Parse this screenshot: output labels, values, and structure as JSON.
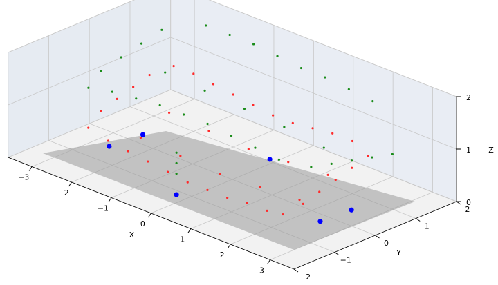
{
  "chart_data": {
    "type": "scatter3d",
    "xlabel": "X",
    "ylabel": "Y",
    "zlabel": "Z",
    "xlim": [
      -3.6,
      3.6
    ],
    "ylim": [
      -2,
      2
    ],
    "zlim": [
      0,
      2
    ],
    "xticks": [
      {
        "value": -3,
        "label": "−3"
      },
      {
        "value": -2,
        "label": "−2"
      },
      {
        "value": -1,
        "label": "−1"
      },
      0,
      1,
      2,
      3
    ],
    "yticks": [
      {
        "value": -2,
        "label": "−2"
      },
      {
        "value": -1,
        "label": "−1"
      },
      0,
      1,
      2
    ],
    "zticks": [
      0,
      1,
      2
    ],
    "grid": true,
    "series": [
      {
        "color": "#ff2a2a",
        "x": [
          -2.5,
          -2,
          -1.5,
          -1,
          -0.5,
          0,
          0.5,
          1,
          1.5,
          2,
          2.4,
          2.5,
          2.5,
          2.5,
          2.5,
          2.5,
          2,
          1.5,
          1,
          0.5,
          0,
          -0.5,
          -1,
          -1.5,
          -2,
          -2.5,
          -2.7,
          -2.7,
          -2.7,
          -2.7,
          -2,
          -1,
          0,
          1,
          2,
          2,
          1,
          0,
          -1,
          -2
        ],
        "y": [
          -1.1,
          -1.1,
          -1.1,
          -1.1,
          -1.1,
          -1.1,
          -1.1,
          -1.1,
          -1.1,
          -1.1,
          -1.1,
          -0.7,
          -0.3,
          0.1,
          0.5,
          0.9,
          1,
          1,
          1,
          1,
          1,
          1,
          1,
          1,
          1,
          1,
          0.6,
          0.2,
          -0.2,
          -0.6,
          -0.3,
          -0.3,
          -0.3,
          -0.3,
          -0.3,
          0.4,
          0.4,
          0.4,
          0.4,
          0.4
        ],
        "z": [
          0.6,
          0.5,
          0.45,
          0.4,
          0.35,
          0.3,
          0.3,
          0.3,
          0.35,
          0.35,
          0.4,
          0.5,
          0.6,
          0.7,
          0.8,
          0.9,
          1,
          1,
          0.95,
          0.9,
          0.9,
          0.95,
          1,
          1.05,
          1.1,
          1.1,
          1,
          0.9,
          0.8,
          0.7,
          0.3,
          0.25,
          0.2,
          0.25,
          0.3,
          0.55,
          0.5,
          0.45,
          0.5,
          0.55
        ]
      },
      {
        "color": "#1a8c1a",
        "x": [
          -2.6,
          -2,
          -1.4,
          -0.8,
          -0.2,
          0.4,
          1,
          1.6,
          2.2,
          2.6,
          2.6,
          2.6,
          2.6,
          2.6,
          2,
          1.4,
          0.8,
          0.2,
          -0.4,
          -1,
          -1.6,
          -2.2,
          -2.8,
          -2.8,
          -2.8,
          -2.8,
          -2,
          -1,
          0,
          1,
          2,
          -0.25,
          -0.25,
          -0.25
        ],
        "y": [
          -1,
          -1,
          -1,
          -1,
          -1,
          -1,
          -1,
          -1,
          -1,
          -0.6,
          -0.1,
          0.4,
          0.9,
          1.4,
          1.5,
          1.5,
          1.5,
          1.5,
          1.5,
          1.5,
          1.5,
          1.5,
          1,
          0.5,
          0,
          -0.5,
          0.3,
          0.3,
          0.3,
          0.3,
          0.3,
          -1.13,
          -1.13,
          -1.13
        ],
        "z": [
          1.3,
          1.4,
          1.45,
          1.5,
          1.5,
          1.5,
          1.45,
          1.4,
          1.35,
          1.2,
          1.1,
          1,
          0.9,
          0.8,
          1.6,
          1.65,
          1.7,
          1.7,
          1.75,
          1.8,
          1.8,
          1.8,
          1.7,
          1.6,
          1.5,
          1.4,
          1.35,
          1.3,
          1.25,
          1.2,
          1.1,
          0.8,
          0.6,
          0.4
        ]
      },
      {
        "color": "#0000ff",
        "x": [
          -0.25,
          2.45,
          2.5,
          -0.14,
          -2.63,
          -2.56
        ],
        "y": [
          -1.13,
          -0.23,
          0.49,
          1.06,
          -0.46,
          0.3
        ],
        "z": [
          0,
          0,
          0,
          0,
          0,
          0
        ]
      }
    ]
  }
}
